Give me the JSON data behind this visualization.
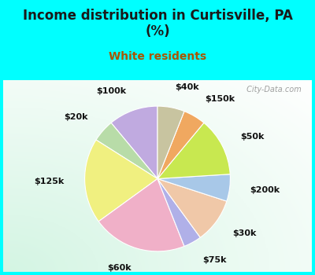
{
  "title": "Income distribution in Curtisville, PA\n(%)",
  "subtitle": "White residents",
  "title_fontsize": 12,
  "subtitle_fontsize": 10,
  "title_color": "#1a1a1a",
  "subtitle_color": "#aa5500",
  "fig_bg": "#00ffff",
  "chart_bg": "#e0f5ee",
  "labels": [
    "$100k",
    "$20k",
    "$125k",
    "$60k",
    "$75k",
    "$30k",
    "$200k",
    "$50k",
    "$150k",
    "$40k"
  ],
  "values": [
    11,
    5,
    19,
    21,
    4,
    10,
    6,
    13,
    5,
    6
  ],
  "colors": [
    "#c0aae0",
    "#b8dca8",
    "#f0f080",
    "#f0b0c8",
    "#b0b0e8",
    "#f0c8a8",
    "#a8c8e8",
    "#c8e850",
    "#f0a860",
    "#c8c4a0"
  ],
  "label_fontsize": 8,
  "label_color": "#111111",
  "watermark": " City-Data.com",
  "startangle": 90,
  "labeldistance": 1.28
}
